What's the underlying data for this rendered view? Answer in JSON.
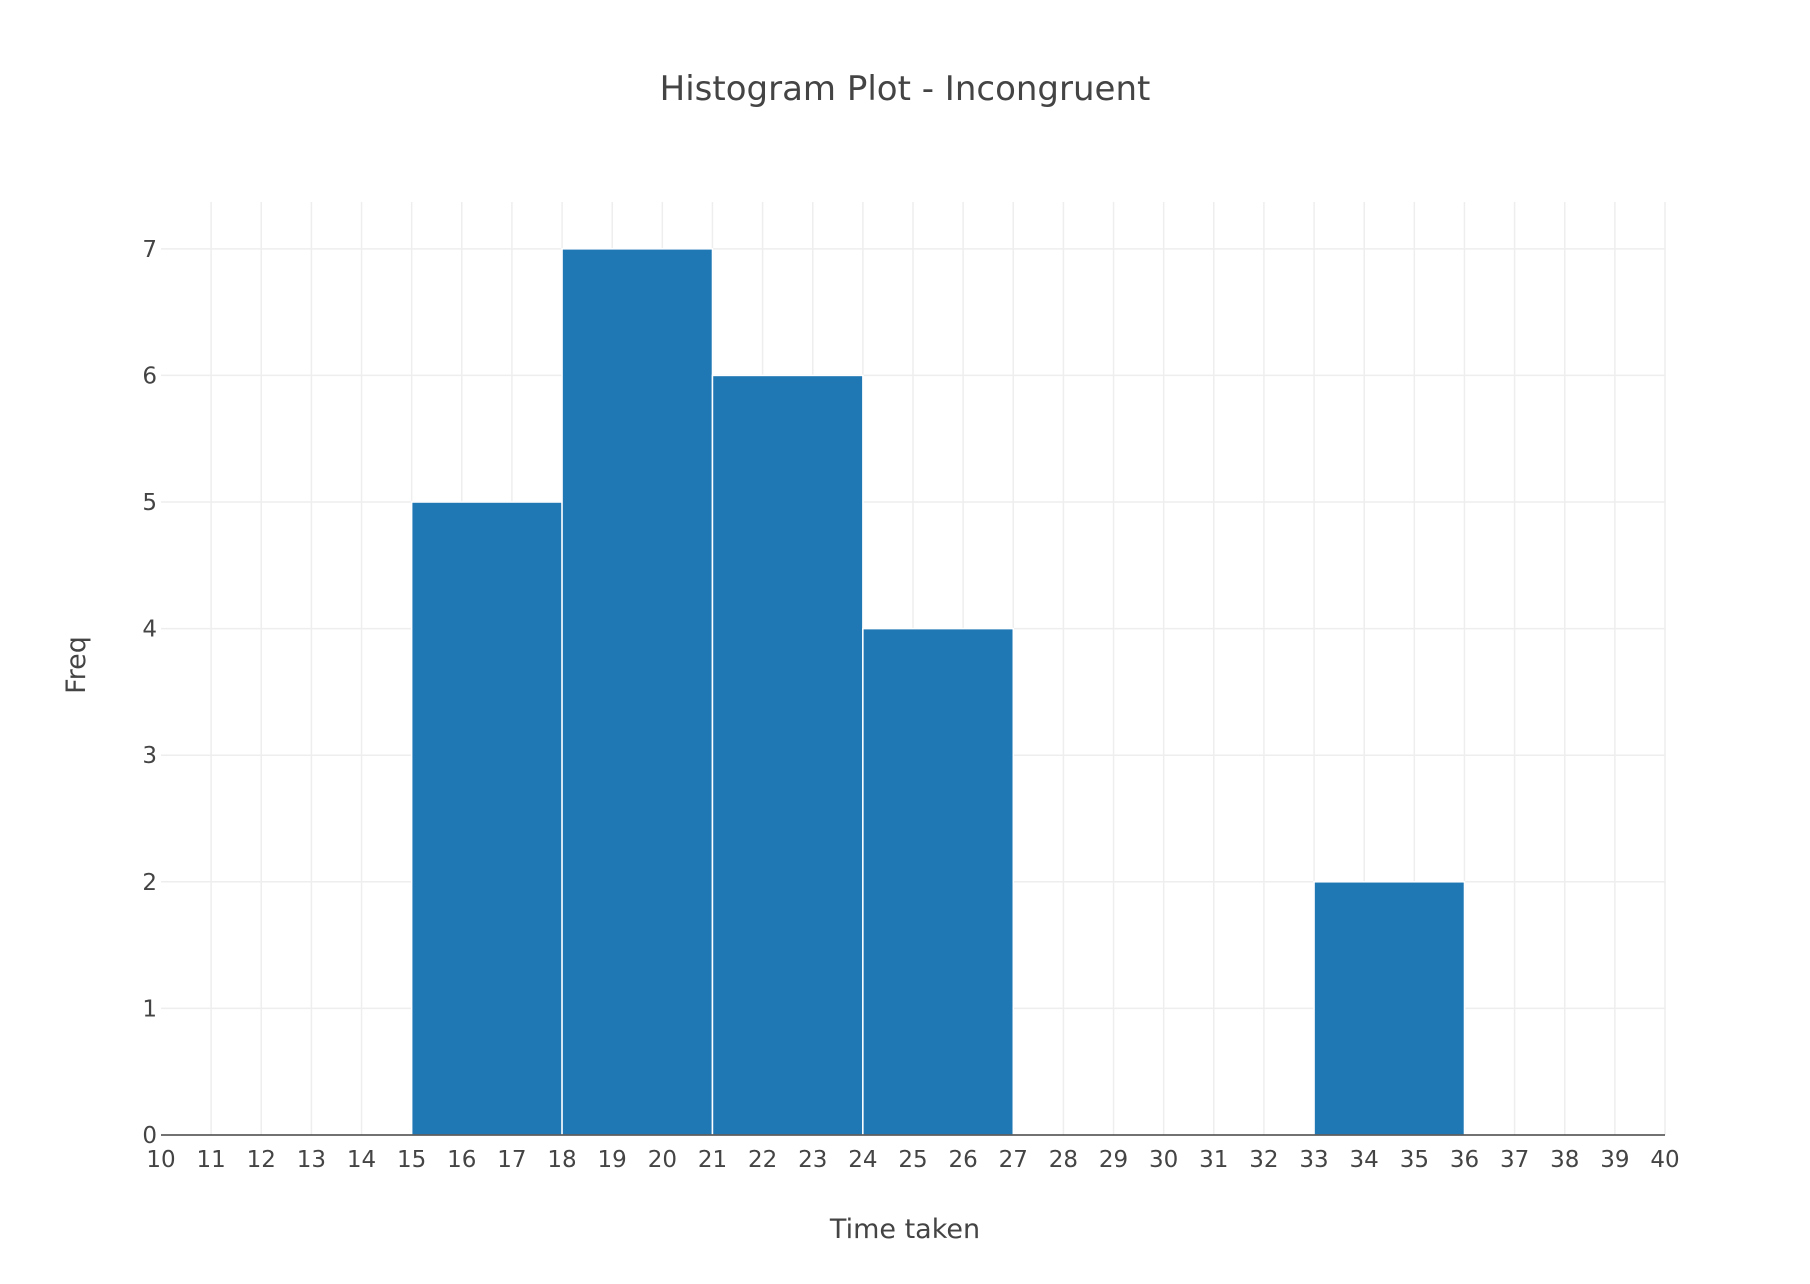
{
  "chart_data": {
    "type": "bar",
    "title": "Histogram Plot - Incongruent",
    "xlabel": "Time taken",
    "ylabel": "Freq",
    "bins": [
      {
        "start": 15,
        "end": 18,
        "count": 5
      },
      {
        "start": 18,
        "end": 21,
        "count": 7
      },
      {
        "start": 21,
        "end": 24,
        "count": 6
      },
      {
        "start": 24,
        "end": 27,
        "count": 4
      },
      {
        "start": 33,
        "end": 36,
        "count": 2
      }
    ],
    "xlim": [
      10,
      40
    ],
    "ylim": [
      0,
      7.37
    ],
    "x_ticks": [
      "10",
      "11",
      "12",
      "13",
      "14",
      "15",
      "16",
      "17",
      "18",
      "19",
      "20",
      "21",
      "22",
      "23",
      "24",
      "25",
      "26",
      "27",
      "28",
      "29",
      "30",
      "31",
      "32",
      "33",
      "34",
      "35",
      "36",
      "37",
      "38",
      "39",
      "40"
    ],
    "y_ticks": [
      "0",
      "1",
      "2",
      "3",
      "4",
      "5",
      "6",
      "7"
    ],
    "bar_color": "#1f77b4",
    "grid": true,
    "legend": false
  }
}
